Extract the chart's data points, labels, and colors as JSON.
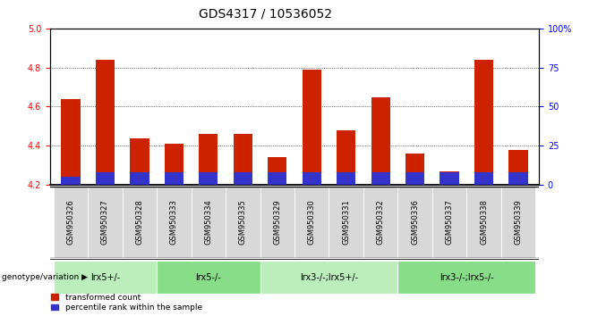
{
  "title": "GDS4317 / 10536052",
  "samples": [
    "GSM950326",
    "GSM950327",
    "GSM950328",
    "GSM950333",
    "GSM950334",
    "GSM950335",
    "GSM950329",
    "GSM950330",
    "GSM950331",
    "GSM950332",
    "GSM950336",
    "GSM950337",
    "GSM950338",
    "GSM950339"
  ],
  "transformed_count": [
    4.64,
    4.84,
    4.44,
    4.41,
    4.46,
    4.46,
    4.34,
    4.79,
    4.48,
    4.65,
    4.36,
    4.27,
    4.84,
    4.38
  ],
  "percentile_rank": [
    5,
    8,
    8,
    8,
    8,
    8,
    8,
    8,
    8,
    8,
    8,
    8,
    8,
    8
  ],
  "ylim_left": [
    4.2,
    5.0
  ],
  "ylim_right": [
    0,
    100
  ],
  "yticks_left": [
    4.2,
    4.4,
    4.6,
    4.8,
    5.0
  ],
  "yticks_right": [
    0,
    25,
    50,
    75,
    100
  ],
  "groups": [
    {
      "label": "lrx5+/-",
      "start": 0,
      "end": 3,
      "color": "#bbeebb"
    },
    {
      "label": "lrx5-/-",
      "start": 3,
      "end": 6,
      "color": "#88dd88"
    },
    {
      "label": "lrx3-/-;lrx5+/-",
      "start": 6,
      "end": 10,
      "color": "#bbeebb"
    },
    {
      "label": "lrx3-/-;lrx5-/-",
      "start": 10,
      "end": 14,
      "color": "#88dd88"
    }
  ],
  "bar_color_red": "#cc2200",
  "bar_color_blue": "#3333cc",
  "bar_width": 0.55,
  "base_value": 4.2,
  "legend_red": "transformed count",
  "legend_blue": "percentile rank within the sample",
  "genotype_label": "genotype/variation",
  "title_fontsize": 10,
  "tick_fontsize": 7
}
